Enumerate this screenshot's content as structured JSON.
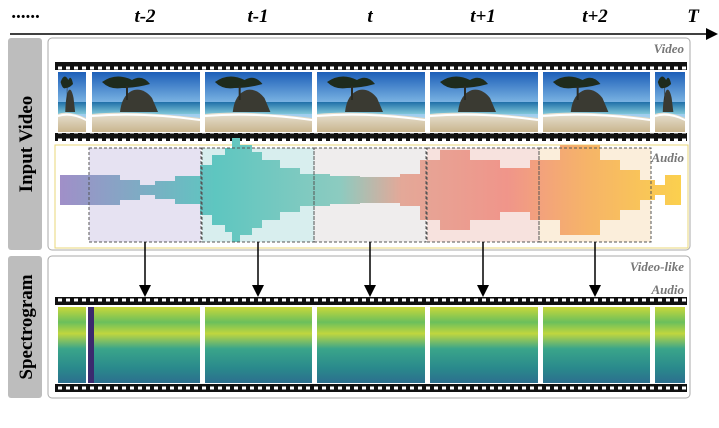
{
  "timeline": {
    "dots": "......",
    "labels": [
      "t-2",
      "t-1",
      "t",
      "t+1",
      "t+2"
    ],
    "end": "T"
  },
  "panels": {
    "video": {
      "side_label": "Input Video",
      "video_label": "Video",
      "audio_label": "Audio"
    },
    "spectrogram": {
      "side_label": "Spectrogram",
      "label_lines": [
        "Video-like",
        "Audio"
      ]
    }
  }
}
